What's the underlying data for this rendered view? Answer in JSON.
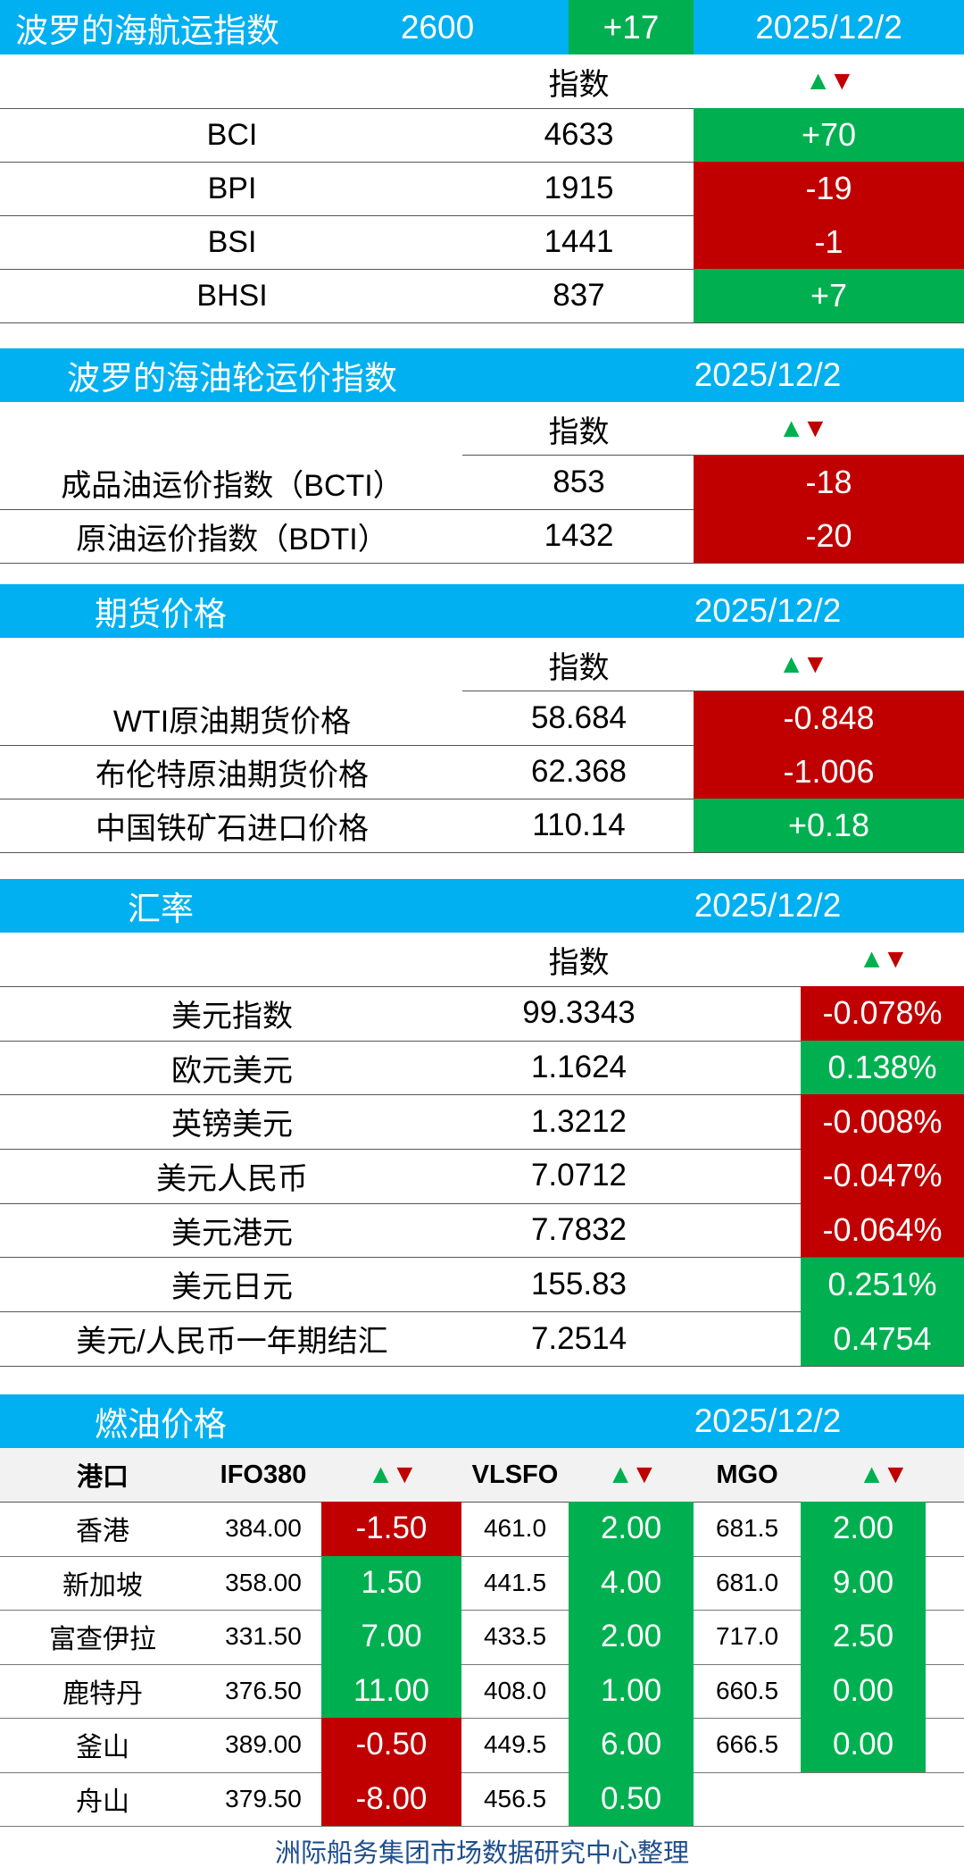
{
  "colors": {
    "header_blue": "#00b0f0",
    "up_green": "#00b050",
    "down_red": "#c00000",
    "footer_text": "#1f4e8c"
  },
  "bdi": {
    "title": "波罗的海航运指数",
    "value": "2600",
    "change": "+17",
    "date": "2025/12/2",
    "col_index": "指数",
    "rows": [
      {
        "name": "BCI",
        "index": "4633",
        "change": "+70",
        "dir": "up"
      },
      {
        "name": "BPI",
        "index": "1915",
        "change": "-19",
        "dir": "down"
      },
      {
        "name": "BSI",
        "index": "1441",
        "change": "-1",
        "dir": "down"
      },
      {
        "name": "BHSI",
        "index": "837",
        "change": "+7",
        "dir": "up"
      }
    ]
  },
  "tanker": {
    "title": "波罗的海油轮运价指数",
    "date": "2025/12/2",
    "col_index": "指数",
    "rows": [
      {
        "name": "成品油运价指数（BCTI）",
        "index": "853",
        "change": "-18",
        "dir": "down"
      },
      {
        "name": "原油运价指数（BDTI）",
        "index": "1432",
        "change": "-20",
        "dir": "down"
      }
    ]
  },
  "futures": {
    "title": "期货价格",
    "date": "2025/12/2",
    "col_index": "指数",
    "rows": [
      {
        "name": "WTI原油期货价格",
        "index": "58.684",
        "change": "-0.848",
        "dir": "down"
      },
      {
        "name": "布伦特原油期货价格",
        "index": "62.368",
        "change": "-1.006",
        "dir": "down"
      },
      {
        "name": "中国铁矿石进口价格",
        "index": "110.14",
        "change": "+0.18",
        "dir": "up"
      }
    ]
  },
  "fx": {
    "title": "汇率",
    "date": "2025/12/2",
    "col_index": "指数",
    "rows": [
      {
        "name": "美元指数",
        "index": "99.3343",
        "change": "-0.078%",
        "dir": "down"
      },
      {
        "name": "欧元美元",
        "index": "1.1624",
        "change": "0.138%",
        "dir": "up"
      },
      {
        "name": "英镑美元",
        "index": "1.3212",
        "change": "-0.008%",
        "dir": "down"
      },
      {
        "name": "美元人民币",
        "index": "7.0712",
        "change": "-0.047%",
        "dir": "down"
      },
      {
        "name": "美元港元",
        "index": "7.7832",
        "change": "-0.064%",
        "dir": "down"
      },
      {
        "name": "美元日元",
        "index": "155.83",
        "change": "0.251%",
        "dir": "up"
      },
      {
        "name": "美元/人民币一年期结汇",
        "index": "7.2514",
        "change": "0.4754",
        "dir": "up"
      }
    ]
  },
  "fuel": {
    "title": "燃油价格",
    "date": "2025/12/2",
    "headers": {
      "port": "港口",
      "ifo": "IFO380",
      "vlsfo": "VLSFO",
      "mgo": "MGO"
    },
    "rows": [
      {
        "port": "香港",
        "ifo": "384.00",
        "ifo_chg": "-1.50",
        "ifo_dir": "down",
        "vlsfo": "461.0",
        "vlsfo_chg": "2.00",
        "vlsfo_dir": "up",
        "mgo": "681.5",
        "mgo_chg": "2.00",
        "mgo_dir": "up"
      },
      {
        "port": "新加坡",
        "ifo": "358.00",
        "ifo_chg": "1.50",
        "ifo_dir": "up",
        "vlsfo": "441.5",
        "vlsfo_chg": "4.00",
        "vlsfo_dir": "up",
        "mgo": "681.0",
        "mgo_chg": "9.00",
        "mgo_dir": "up"
      },
      {
        "port": "富查伊拉",
        "ifo": "331.50",
        "ifo_chg": "7.00",
        "ifo_dir": "up",
        "vlsfo": "433.5",
        "vlsfo_chg": "2.00",
        "vlsfo_dir": "up",
        "mgo": "717.0",
        "mgo_chg": "2.50",
        "mgo_dir": "up"
      },
      {
        "port": "鹿特丹",
        "ifo": "376.50",
        "ifo_chg": "11.00",
        "ifo_dir": "up",
        "vlsfo": "408.0",
        "vlsfo_chg": "1.00",
        "vlsfo_dir": "up",
        "mgo": "660.5",
        "mgo_chg": "0.00",
        "mgo_dir": "up"
      },
      {
        "port": "釜山",
        "ifo": "389.00",
        "ifo_chg": "-0.50",
        "ifo_dir": "down",
        "vlsfo": "449.5",
        "vlsfo_chg": "6.00",
        "vlsfo_dir": "up",
        "mgo": "666.5",
        "mgo_chg": "0.00",
        "mgo_dir": "up"
      },
      {
        "port": "舟山",
        "ifo": "379.50",
        "ifo_chg": "-8.00",
        "ifo_dir": "down",
        "vlsfo": "456.5",
        "vlsfo_chg": "0.50",
        "vlsfo_dir": "up",
        "mgo": "",
        "mgo_chg": "",
        "mgo_dir": "none"
      }
    ]
  },
  "footer": "洲际船务集团市场数据研究中心整理"
}
